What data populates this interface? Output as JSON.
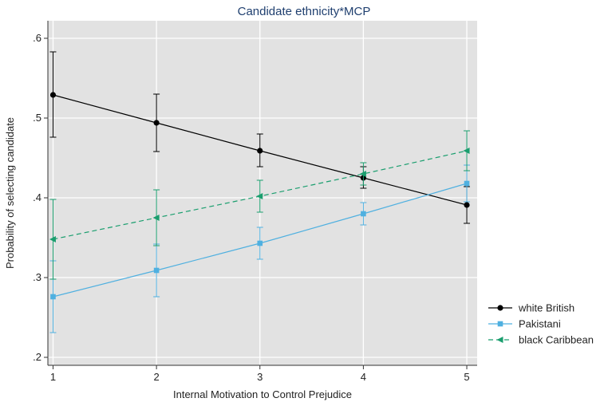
{
  "chart_data": {
    "type": "line",
    "title": "Candidate ethnicity*MCP",
    "xlabel": "Internal Motivation to Control Prejudice",
    "ylabel": "Probability of selecting candidate",
    "x": [
      1,
      2,
      3,
      4,
      5
    ],
    "x_ticks": [
      1,
      2,
      3,
      4,
      5
    ],
    "x_tick_labels": [
      "1",
      "2",
      "3",
      "4",
      "5"
    ],
    "xlim": [
      0.95,
      5.1
    ],
    "y_ticks": [
      0.2,
      0.3,
      0.4,
      0.5,
      0.6
    ],
    "y_tick_labels": [
      ".2",
      ".3",
      ".4",
      ".5",
      ".6"
    ],
    "ylim": [
      0.19,
      0.622
    ],
    "grid": true,
    "legend_position": "right",
    "series": [
      {
        "name": "white British",
        "color": "#000000",
        "marker": "circle",
        "dash": "solid",
        "values": [
          0.529,
          0.494,
          0.459,
          0.425,
          0.391
        ],
        "ci_low": [
          0.476,
          0.458,
          0.439,
          0.412,
          0.368
        ],
        "ci_high": [
          0.583,
          0.53,
          0.48,
          0.439,
          0.414
        ]
      },
      {
        "name": "Pakistani",
        "color": "#4fb0e0",
        "marker": "square",
        "dash": "solid",
        "values": [
          0.276,
          0.309,
          0.343,
          0.38,
          0.418
        ],
        "ci_low": [
          0.231,
          0.276,
          0.323,
          0.366,
          0.395
        ],
        "ci_high": [
          0.321,
          0.342,
          0.363,
          0.394,
          0.441
        ]
      },
      {
        "name": "black Caribbean",
        "color": "#1a9e6e",
        "marker": "triangle-left",
        "dash": "dashed",
        "values": [
          0.348,
          0.375,
          0.402,
          0.43,
          0.459
        ],
        "ci_low": [
          0.298,
          0.34,
          0.382,
          0.416,
          0.434
        ],
        "ci_high": [
          0.398,
          0.41,
          0.422,
          0.444,
          0.484
        ]
      }
    ]
  }
}
